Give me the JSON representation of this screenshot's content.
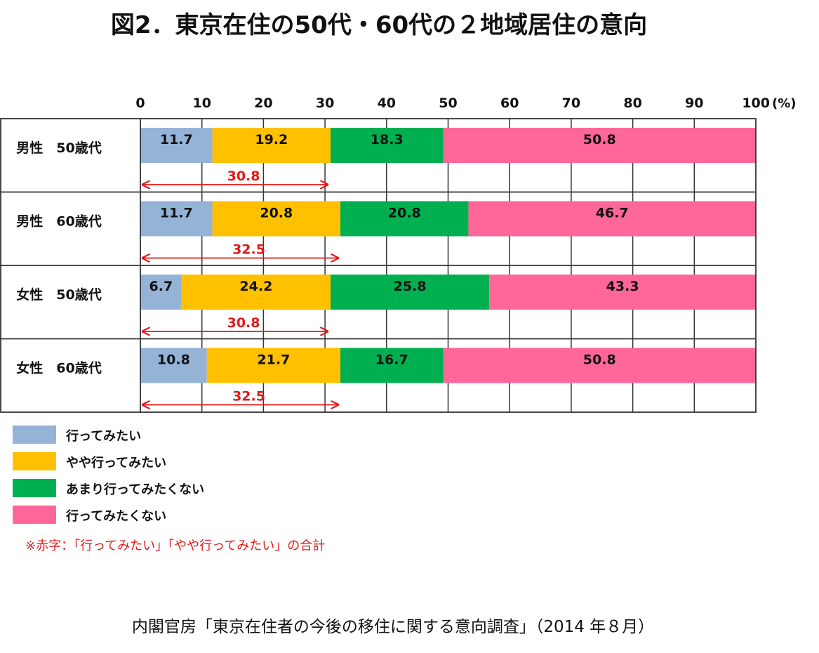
{
  "title": "図2．東京在住の50代・60代の２地域居住の意向",
  "chart_data": {
    "type": "bar",
    "orientation": "horizontal",
    "stacked": true,
    "x_unit": "(%)",
    "xlim": [
      0,
      100
    ],
    "x_ticks": [
      "0",
      "10",
      "20",
      "30",
      "40",
      "50",
      "60",
      "70",
      "80",
      "90",
      "100"
    ],
    "grid": true,
    "categories": [
      "男性　50歳代",
      "男性　60歳代",
      "女性　50歳代",
      "女性　60歳代"
    ],
    "series": [
      {
        "name": "行ってみたい",
        "color": "#95b3d7",
        "values": [
          11.7,
          11.7,
          6.7,
          10.8
        ]
      },
      {
        "name": "やや行ってみたい",
        "color": "#ffc000",
        "values": [
          19.2,
          20.8,
          24.2,
          21.7
        ]
      },
      {
        "name": "あまり行ってみたくない",
        "color": "#00b050",
        "values": [
          18.3,
          20.8,
          25.8,
          16.7
        ]
      },
      {
        "name": "行ってみたくない",
        "color": "#ff6699",
        "values": [
          50.8,
          46.7,
          43.3,
          50.8
        ]
      }
    ],
    "totals_label": [
      "30.8",
      "32.5",
      "30.8",
      "32.5"
    ],
    "totals_value": [
      30.8,
      32.5,
      30.8,
      32.5
    ],
    "totals_color": "#e31a1a",
    "legend_position": "bottom-left"
  },
  "note": "※赤字：「行ってみたい」「やや行ってみたい」の合計",
  "source": "内閣官房「東京在住者の今後の移住に関する意向調査」（2014 年８月）"
}
